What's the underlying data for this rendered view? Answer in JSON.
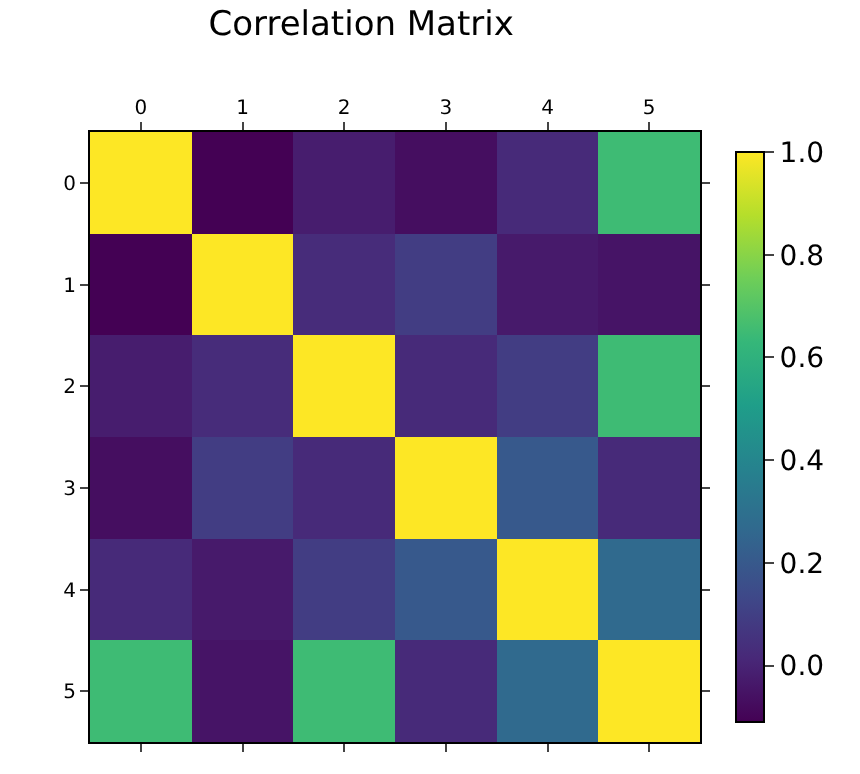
{
  "chart_data": {
    "type": "heatmap",
    "title": "Correlation Matrix",
    "categories": [
      "0",
      "1",
      "2",
      "3",
      "4",
      "5"
    ],
    "y_categories": [
      "0",
      "1",
      "2",
      "3",
      "4",
      "5"
    ],
    "cells": [
      [
        1,
        -0.11,
        -0.02,
        -0.07,
        0.02,
        0.65
      ],
      [
        -0.11,
        1,
        0.03,
        0.09,
        -0.03,
        -0.05
      ],
      [
        -0.02,
        0.03,
        1,
        0.02,
        0.09,
        0.65
      ],
      [
        -0.07,
        0.09,
        0.02,
        1,
        0.2,
        0.02
      ],
      [
        0.02,
        -0.03,
        0.09,
        0.2,
        1,
        0.27
      ],
      [
        0.65,
        -0.05,
        0.65,
        0.02,
        0.27,
        1
      ]
    ],
    "clim": [
      -0.11,
      1.0
    ],
    "cticks": [
      {
        "value": 0,
        "label": "0.0"
      },
      {
        "value": 0.2,
        "label": "0.2"
      },
      {
        "value": 0.4,
        "label": "0.4"
      },
      {
        "value": 0.6,
        "label": "0.6"
      },
      {
        "value": 0.8,
        "label": "0.8"
      },
      {
        "value": 1.0,
        "label": "1.0"
      }
    ]
  }
}
